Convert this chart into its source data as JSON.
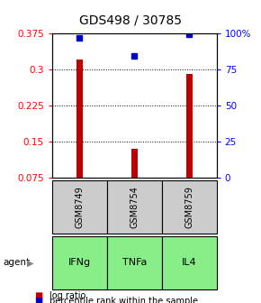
{
  "title": "GDS498 / 30785",
  "categories": [
    "GSM8749",
    "GSM8754",
    "GSM8759"
  ],
  "agents": [
    "IFNg",
    "TNFa",
    "IL4"
  ],
  "bar_values": [
    0.32,
    0.135,
    0.29
  ],
  "percentile_values": [
    0.365,
    0.328,
    0.373
  ],
  "ylim": [
    0.075,
    0.375
  ],
  "yticks_left": [
    0.075,
    0.15,
    0.225,
    0.3,
    0.375
  ],
  "yticks_right_labels": [
    "0",
    "25",
    "50",
    "75",
    "100%"
  ],
  "yticks_right_mapped": [
    0.075,
    0.15,
    0.225,
    0.3,
    0.375
  ],
  "bar_color": "#bb0000",
  "dot_color": "#0000cc",
  "agent_bg_color": "#88ee88",
  "gsm_bg_color": "#cccccc",
  "title_fontsize": 10,
  "tick_fontsize": 7.5,
  "legend_fontsize": 7,
  "bar_width": 0.12
}
